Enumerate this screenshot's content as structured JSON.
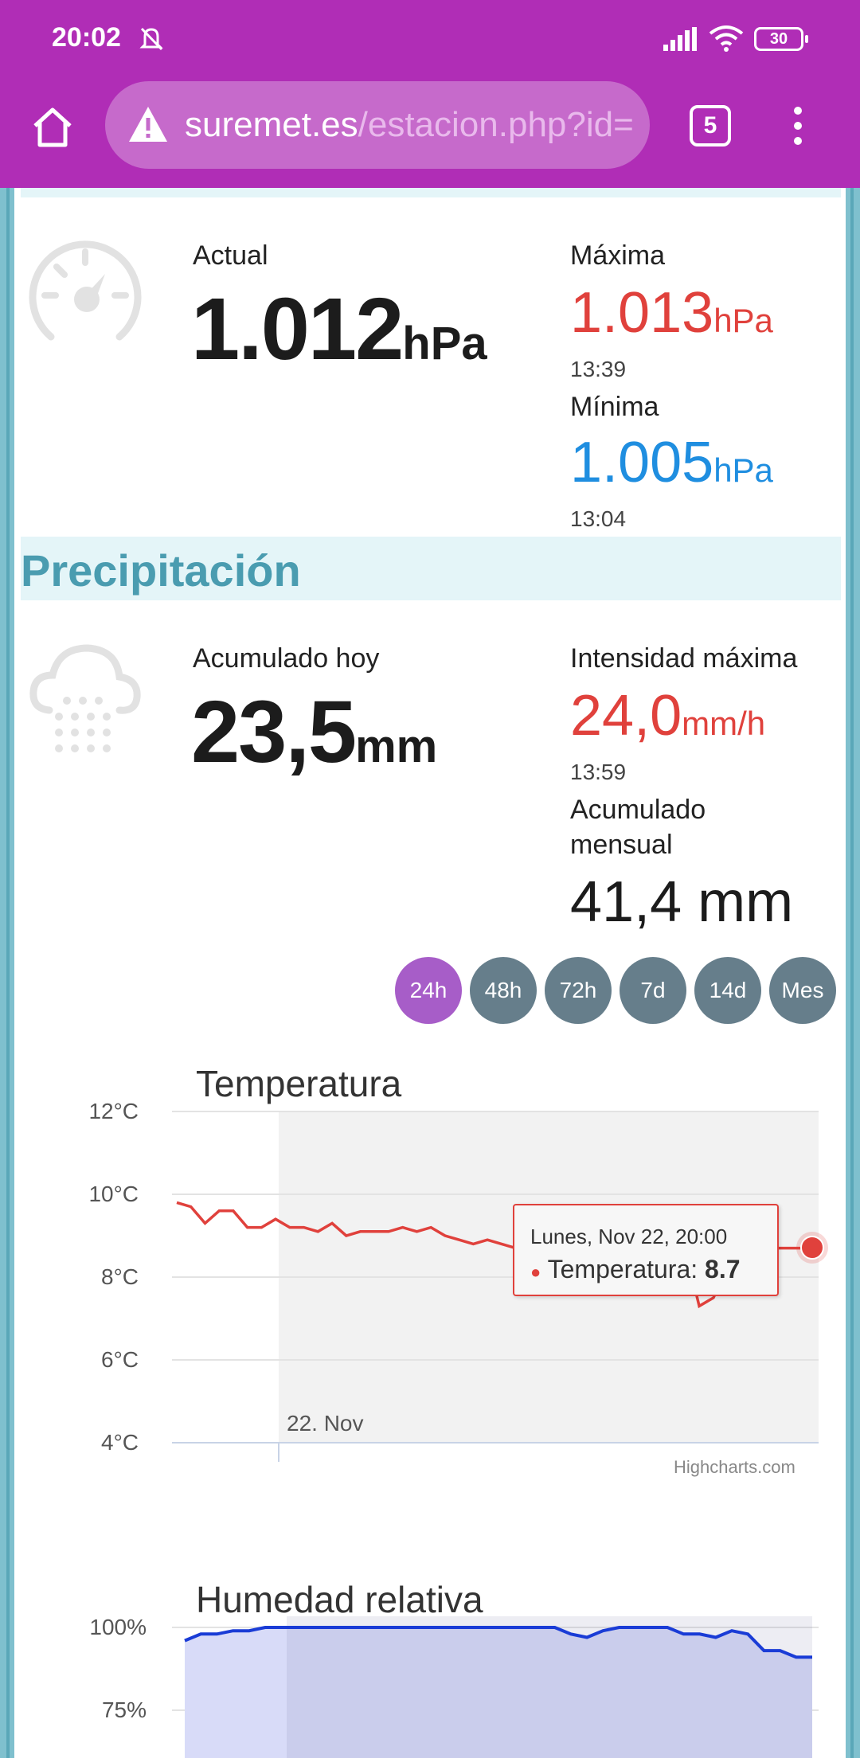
{
  "status_bar": {
    "time": "20:02",
    "battery": "30"
  },
  "browser": {
    "url_host": "suremet.es",
    "url_path": "/estacion.php?id=",
    "tab_count": "5"
  },
  "pressure": {
    "current_label": "Actual",
    "current_value": "1.012",
    "unit": "hPa",
    "max_label": "Máxima",
    "max_value": "1.013",
    "max_time": "13:39",
    "min_label": "Mínima",
    "min_value": "1.005",
    "min_time": "13:04"
  },
  "precipitation": {
    "section_title": "Precipitación",
    "today_label": "Acumulado hoy",
    "today_value": "23,5",
    "today_unit": "mm",
    "max_intensity_label": "Intensidad máxima",
    "max_intensity_value": "24,0",
    "max_intensity_unit": "mm/h",
    "max_intensity_time": "13:59",
    "monthly_label_line1": "Acumulado",
    "monthly_label_line2": "mensual",
    "monthly_value": "41,4 mm"
  },
  "range_buttons": [
    "24h",
    "48h",
    "72h",
    "7d",
    "14d",
    "Mes"
  ],
  "range_selected": "24h",
  "temperature_chart": {
    "title": "Temperatura",
    "date_label": "22. Nov",
    "tooltip_header": "Lunes, Nov 22, 20:00",
    "tooltip_series": "Temperatura:",
    "tooltip_value": "8.7",
    "credits": "Highcharts.com"
  },
  "humidity_chart": {
    "title": "Humedad relativa"
  },
  "chart_data": [
    {
      "type": "line",
      "title": "Temperatura",
      "ylabel": "",
      "yticks": [
        "12°C",
        "10°C",
        "8°C",
        "6°C",
        "4°C"
      ],
      "ylim": [
        4,
        12
      ],
      "xlabel": "",
      "x_tick_labels": [
        "22. Nov"
      ],
      "series": [
        {
          "name": "Temperatura",
          "color": "#e0413c",
          "values": [
            9.8,
            9.7,
            9.3,
            9.6,
            9.6,
            9.2,
            9.2,
            9.4,
            9.2,
            9.2,
            9.1,
            9.3,
            9.0,
            9.1,
            9.1,
            9.1,
            9.2,
            9.1,
            9.2,
            9.0,
            8.9,
            8.8,
            8.9,
            8.8,
            8.7,
            8.6,
            8.6,
            8.4,
            8.3,
            8.4,
            8.3,
            8.4,
            8.2,
            8.2,
            8.5,
            8.7,
            8.7,
            7.3,
            7.5,
            8.2,
            8.6,
            8.6,
            8.7,
            8.7,
            8.7,
            8.7
          ]
        }
      ],
      "grid": true
    },
    {
      "type": "area",
      "title": "Humedad relativa",
      "yticks": [
        "100%",
        "75%"
      ],
      "ylim": [
        50,
        100
      ],
      "series": [
        {
          "name": "Humedad relativa",
          "color": "#1a3cd6",
          "values": [
            96,
            98,
            98,
            99,
            99,
            100,
            100,
            100,
            100,
            100,
            100,
            100,
            100,
            100,
            100,
            100,
            100,
            100,
            100,
            100,
            100,
            100,
            100,
            100,
            98,
            97,
            99,
            100,
            100,
            100,
            100,
            98,
            98,
            97,
            99,
            98,
            93,
            93,
            91,
            91
          ]
        }
      ],
      "grid": true
    }
  ]
}
